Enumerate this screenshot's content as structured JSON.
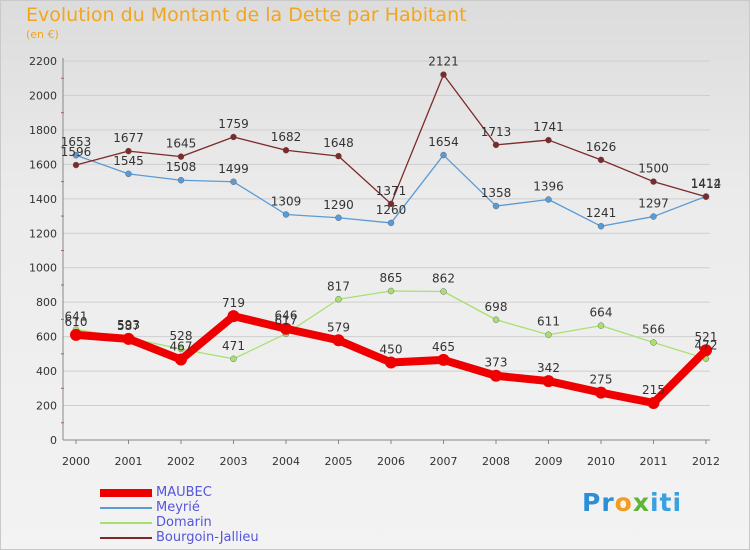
{
  "chart_data": {
    "type": "line",
    "title": "Evolution du Montant de la Dette par Habitant",
    "subtitle": "(en €)",
    "xlabel": "",
    "ylabel": "",
    "x": [
      "2000",
      "2001",
      "2002",
      "2003",
      "2004",
      "2005",
      "2006",
      "2007",
      "2008",
      "2009",
      "2010",
      "2011",
      "2012"
    ],
    "ylim": [
      0,
      2200
    ],
    "yticks": [
      0,
      200,
      400,
      600,
      800,
      1000,
      1200,
      1400,
      1600,
      1800,
      2000,
      2200
    ],
    "grid": "horizontal",
    "legend_position": "bottom-left",
    "series": [
      {
        "name": "MAUBEC",
        "color": "#ee0000",
        "width": 8,
        "values": [
          610,
          587,
          467,
          719,
          646,
          579,
          450,
          465,
          373,
          342,
          275,
          215,
          521
        ]
      },
      {
        "name": "Meyrié",
        "color": "#5b9bd5",
        "width": 1.3,
        "values": [
          1653,
          1545,
          1508,
          1499,
          1309,
          1290,
          1260,
          1654,
          1358,
          1396,
          1241,
          1297,
          1414
        ]
      },
      {
        "name": "Domarin",
        "color": "#a8e070",
        "width": 1.3,
        "values": [
          641,
          593,
          528,
          471,
          617,
          817,
          865,
          862,
          698,
          611,
          664,
          566,
          472
        ]
      },
      {
        "name": "Bourgoin-Jallieu",
        "color": "#7d2a2a",
        "width": 1.3,
        "values": [
          1596,
          1677,
          1645,
          1759,
          1682,
          1648,
          1371,
          2121,
          1713,
          1741,
          1626,
          1500,
          1412
        ]
      }
    ]
  },
  "logo": {
    "p1": "Pr",
    "p2": "o",
    "p3": "x",
    "p4": "iti"
  }
}
